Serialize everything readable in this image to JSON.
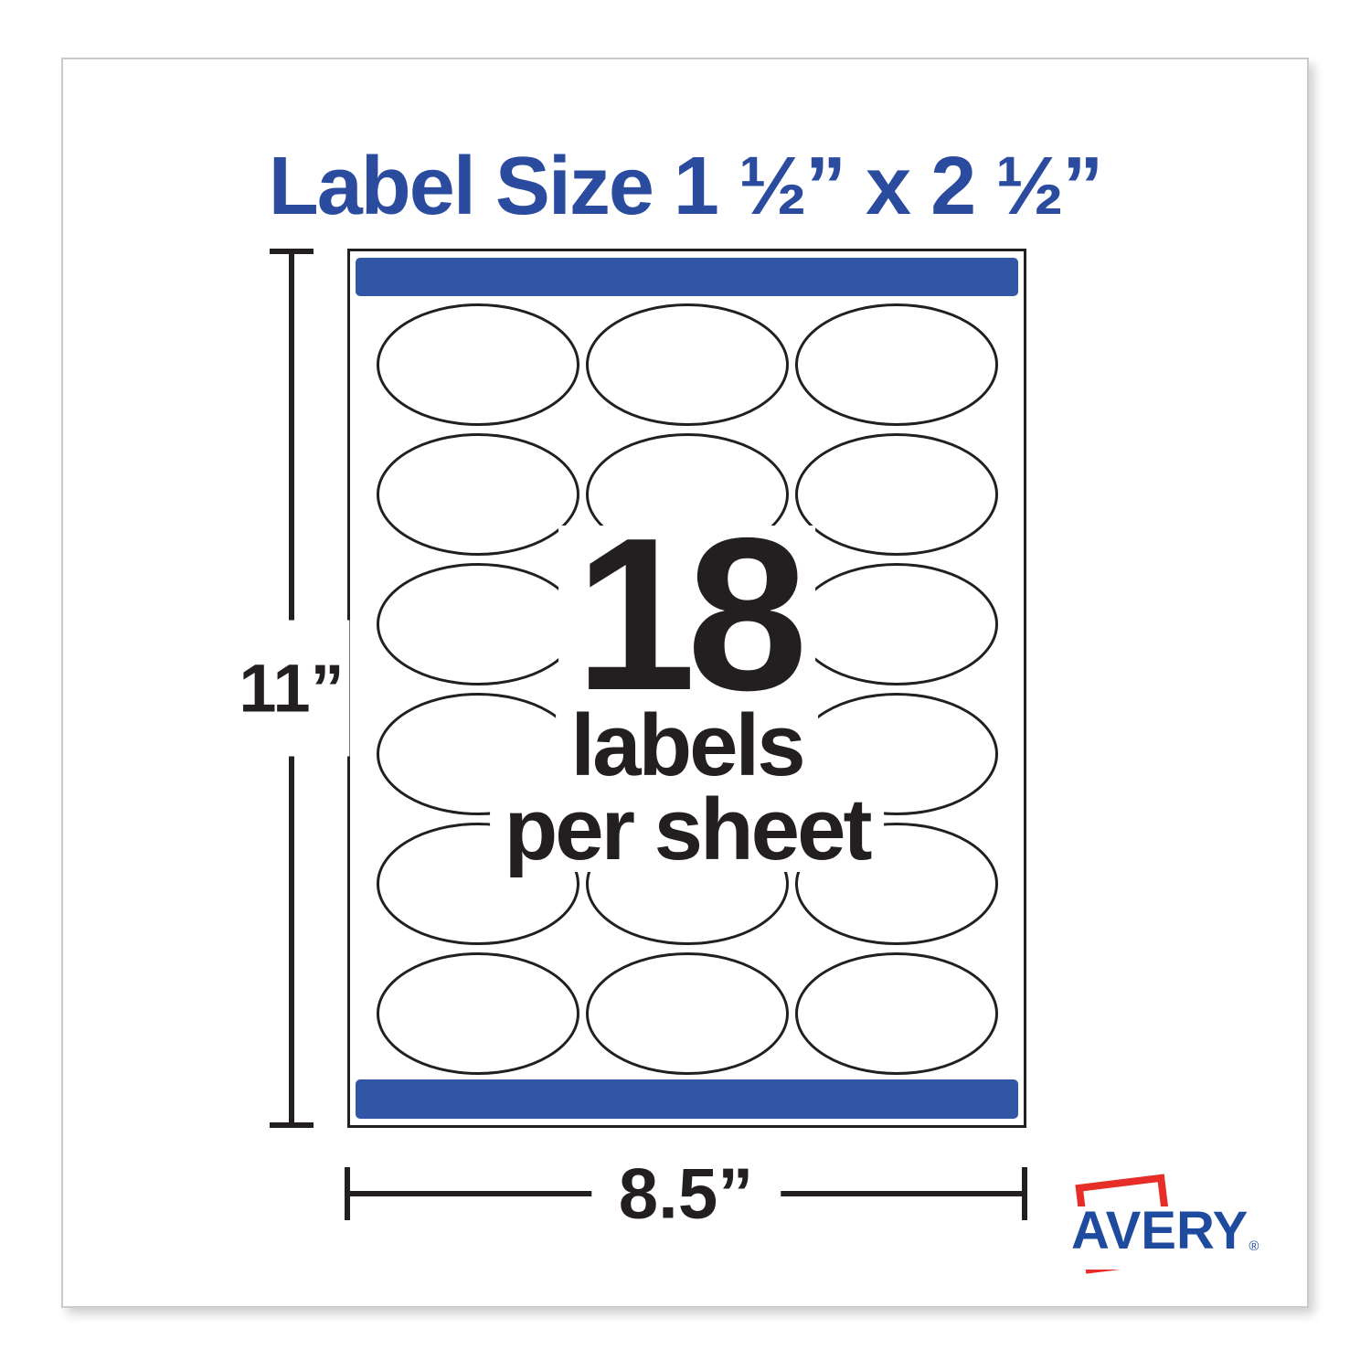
{
  "title": "Label Size 1 ½” x 2 ½”",
  "sheet_diagram": {
    "rows": 6,
    "cols": 3,
    "labels_count": "18",
    "caption_line1": "labels",
    "caption_line2": "per sheet"
  },
  "dimensions": {
    "height_label": "11”",
    "width_label": "8.5”"
  },
  "brand": {
    "name": "AVERY",
    "registered_mark": "®"
  },
  "colors": {
    "heading_blue": "#2B4C9E",
    "bar_blue": "#3156A6",
    "brand_blue": "#1E4B9E",
    "brand_red": "#E62D28",
    "ink_black": "#231F20"
  }
}
